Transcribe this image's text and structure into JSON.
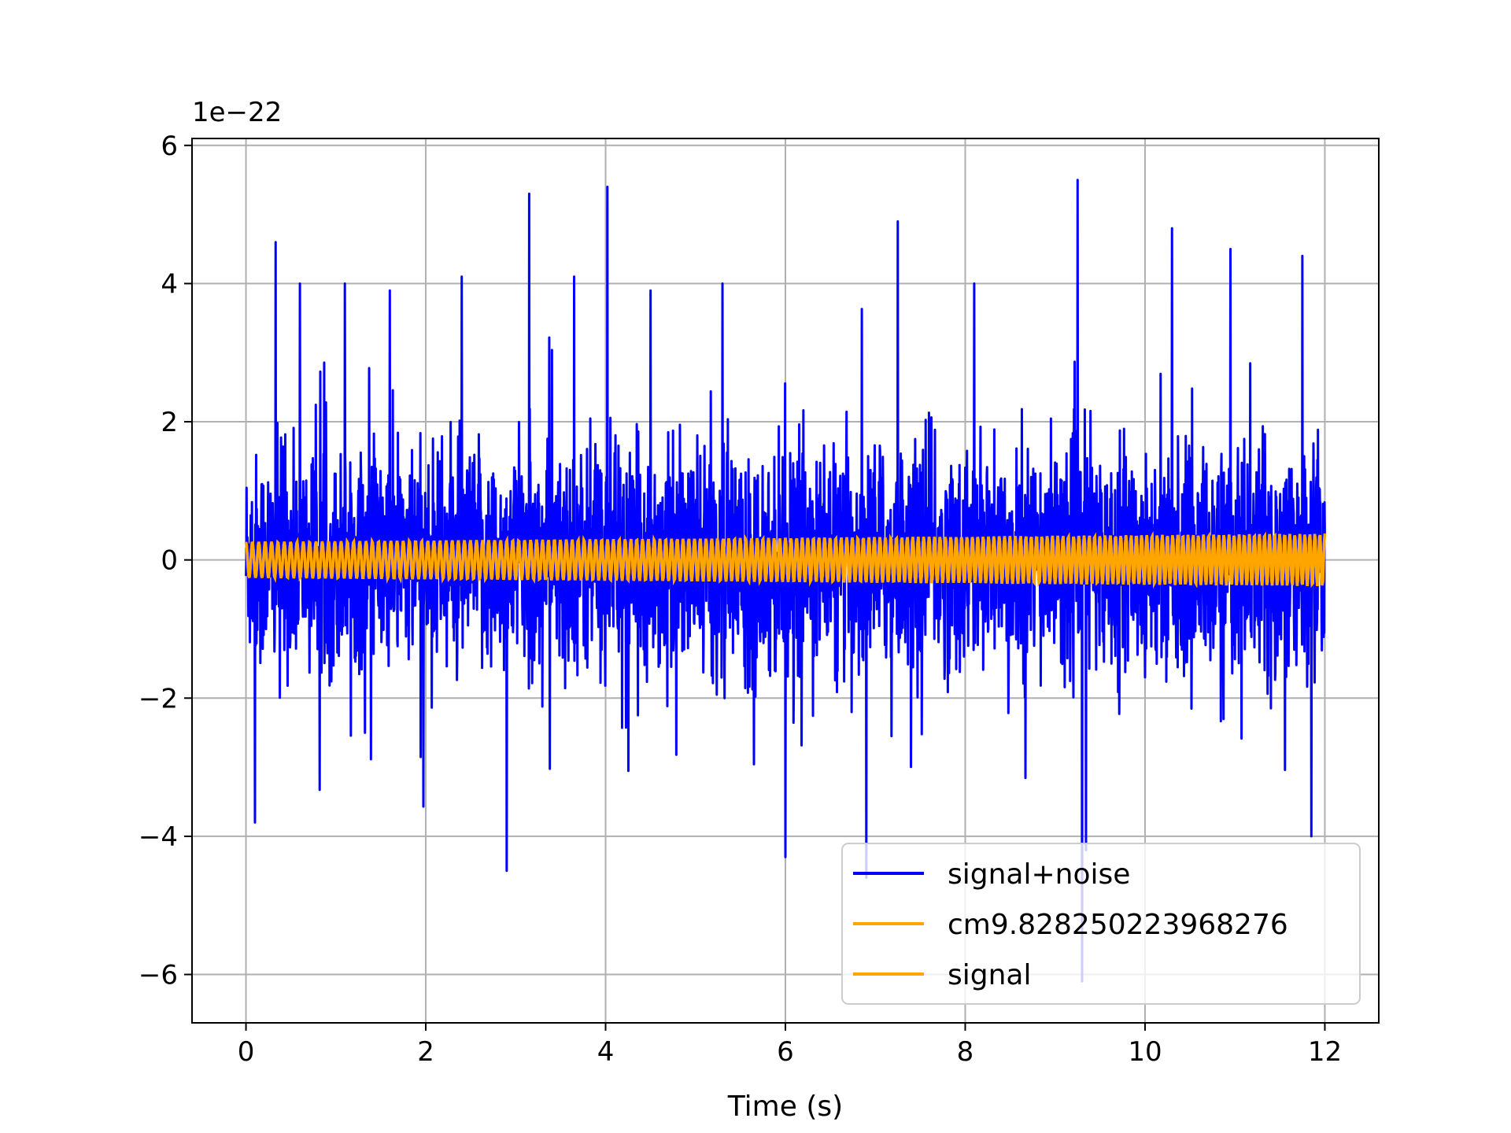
{
  "chart_data": {
    "type": "line",
    "title": "",
    "xlabel": "Time (s)",
    "ylabel": "",
    "y_offset_label": "1e−22",
    "xlim": [
      -0.6,
      12.6
    ],
    "ylim": [
      -6.7,
      6.1
    ],
    "xticks": [
      0,
      2,
      4,
      6,
      8,
      10,
      12
    ],
    "xtick_labels": [
      "0",
      "2",
      "4",
      "6",
      "8",
      "10",
      "12"
    ],
    "yticks": [
      -6,
      -4,
      -2,
      0,
      2,
      4,
      6
    ],
    "ytick_labels": [
      "−6",
      "−4",
      "−2",
      "0",
      "2",
      "4",
      "6"
    ],
    "grid": true,
    "legend_position": "lower right",
    "colors": {
      "signal_noise": "#0000ff",
      "signal": "#ffa500"
    },
    "series": [
      {
        "name": "signal+noise",
        "color": "#0000ff",
        "x_range": [
          0,
          12
        ],
        "typical_envelope": [
          -1.5,
          1.5
        ],
        "peak_times": [
          0.1,
          0.33,
          0.6,
          1.1,
          1.6,
          2.4,
          2.9,
          3.15,
          3.65,
          4.02,
          4.5,
          5.3,
          6.0,
          6.9,
          7.25,
          8.1,
          9.25,
          9.3,
          10.3,
          10.95,
          11.75,
          11.85
        ],
        "peak_values": [
          -3.8,
          4.6,
          4.0,
          4.0,
          3.9,
          4.1,
          -4.5,
          5.3,
          4.1,
          5.4,
          3.9,
          4.0,
          -4.3,
          -4.6,
          4.9,
          4.0,
          5.5,
          -6.1,
          4.8,
          4.5,
          4.4,
          -4.0
        ],
        "min_value": -6.1,
        "max_value": 5.5
      },
      {
        "name": "cm9.828250223968276",
        "color": "#ffa500",
        "x_range": [
          0,
          12
        ],
        "amplitude_start": 0.26,
        "amplitude_end": 0.38
      },
      {
        "name": "signal",
        "color": "#ffa500",
        "x_range": [
          0,
          12
        ],
        "amplitude_start": 0.26,
        "amplitude_end": 0.38
      }
    ]
  }
}
